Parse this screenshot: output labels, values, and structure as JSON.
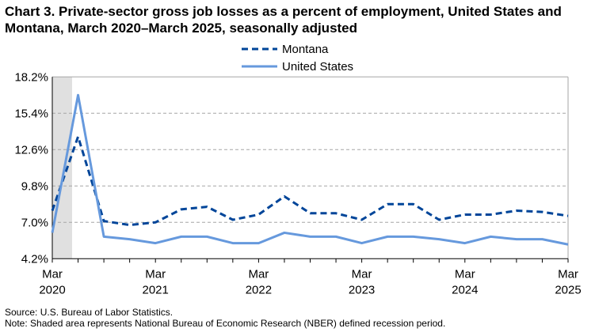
{
  "chart_data": {
    "type": "line",
    "title": "Chart 3. Private-sector gross job losses as a percent of employment, United States and Montana, March 2020–March 2025, seasonally adjusted",
    "x": [
      "Mar 2020",
      "Jun 2020",
      "Sep 2020",
      "Dec 2020",
      "Mar 2021",
      "Jun 2021",
      "Sep 2021",
      "Dec 2021",
      "Mar 2022",
      "Jun 2022",
      "Sep 2022",
      "Dec 2022",
      "Mar 2023",
      "Jun 2023",
      "Sep 2023",
      "Dec 2023",
      "Mar 2024",
      "Jun 2024",
      "Sep 2024",
      "Dec 2024",
      "Mar 2025"
    ],
    "x_tick_labels": [
      [
        "Mar",
        "2020"
      ],
      [
        "Mar",
        "2021"
      ],
      [
        "Mar",
        "2022"
      ],
      [
        "Mar",
        "2023"
      ],
      [
        "Mar",
        "2024"
      ],
      [
        "Mar",
        "2025"
      ]
    ],
    "y_tick_labels": [
      "4.2%",
      "7.0%",
      "9.8%",
      "12.6%",
      "15.4%",
      "18.2%"
    ],
    "y_ticks": [
      4.2,
      7.0,
      9.8,
      12.6,
      15.4,
      18.2
    ],
    "ylim": [
      4.2,
      18.2
    ],
    "grid": "horizontal dashed",
    "legend_position": "top-center",
    "series": [
      {
        "name": "Montana",
        "style": "dashed",
        "color": "#004599",
        "values": [
          7.9,
          13.6,
          7.1,
          6.8,
          7.0,
          8.0,
          8.2,
          7.2,
          7.6,
          9.0,
          7.7,
          7.7,
          7.2,
          8.4,
          8.4,
          7.2,
          7.6,
          7.6,
          7.9,
          7.8,
          7.5
        ]
      },
      {
        "name": "United States",
        "style": "solid",
        "color": "#6699dd",
        "values": [
          6.2,
          16.8,
          5.9,
          5.7,
          5.4,
          5.9,
          5.9,
          5.4,
          5.4,
          6.2,
          5.9,
          5.9,
          5.4,
          5.9,
          5.9,
          5.7,
          5.4,
          5.9,
          5.7,
          5.7,
          5.3
        ]
      }
    ],
    "recession": {
      "start": "Feb 2020",
      "end": "Apr 2020",
      "color": "#e0e0e0"
    }
  },
  "footer": {
    "source": "Source: U.S. Bureau of Labor Statistics.",
    "note": "Note: Shaded area represents National Bureau of Economic Research (NBER) defined  recession period."
  }
}
